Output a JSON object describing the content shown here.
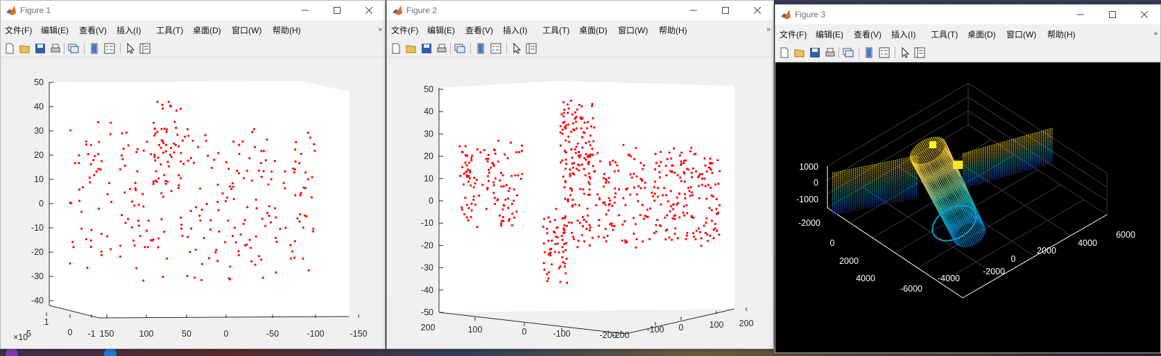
{
  "menu": [
    "文件(F)",
    "编辑(E)",
    "查看(V)",
    "插入(I)",
    "工具(T)",
    "桌面(D)",
    "窗口(W)",
    "帮助(H)"
  ],
  "menu_more": "»",
  "toolbar_icons": [
    "new-figure-icon",
    "open-file-icon",
    "save-icon",
    "print-icon",
    "link-figure-icon",
    "colorbar-icon",
    "legend-icon",
    "pointer-icon",
    "property-inspector-icon"
  ],
  "windows": [
    {
      "title": "Figure 1",
      "chart_data": {
        "type": "scatter",
        "projection": "3d",
        "marker_color": "#ff0000",
        "z_ticks": [
          "50",
          "40",
          "30",
          "20",
          "10",
          "0",
          "-10",
          "-20",
          "-30",
          "-40"
        ],
        "zlim": [
          -42,
          50
        ],
        "x_ticks": [
          "1",
          "0",
          "-1"
        ],
        "x_exponent": "×10",
        "x_exponent_power": "5",
        "y_ticks": [
          "150",
          "100",
          "50",
          "0",
          "-50",
          "-100",
          "-150"
        ],
        "point_count": 320,
        "seed": 11
      }
    },
    {
      "title": "Figure 2",
      "chart_data": {
        "type": "scatter",
        "projection": "3d",
        "marker_color": "#ff0000",
        "z_ticks": [
          "50",
          "40",
          "30",
          "20",
          "10",
          "0",
          "-10",
          "-20",
          "-30",
          "-40",
          "-50"
        ],
        "zlim": [
          -50,
          50
        ],
        "x_ticks": [
          "200",
          "100",
          "0",
          "-100",
          "-200"
        ],
        "y_ticks": [
          "-200",
          "-100",
          "0",
          "100",
          "200"
        ],
        "point_count": 620,
        "seed": 23
      }
    },
    {
      "title": "Figure 3",
      "chart_data": {
        "type": "scatter",
        "projection": "3d",
        "background": "#000000",
        "colormap": "parula",
        "z_ticks": [
          "1000",
          "0",
          "-1000"
        ],
        "x_ticks": [
          "-2000",
          "0",
          "2000",
          "4000"
        ],
        "y_ticks": [
          "-6000",
          "-4000",
          "-2000",
          "0",
          "2000",
          "4000",
          "6000"
        ],
        "grid": true
      }
    }
  ]
}
